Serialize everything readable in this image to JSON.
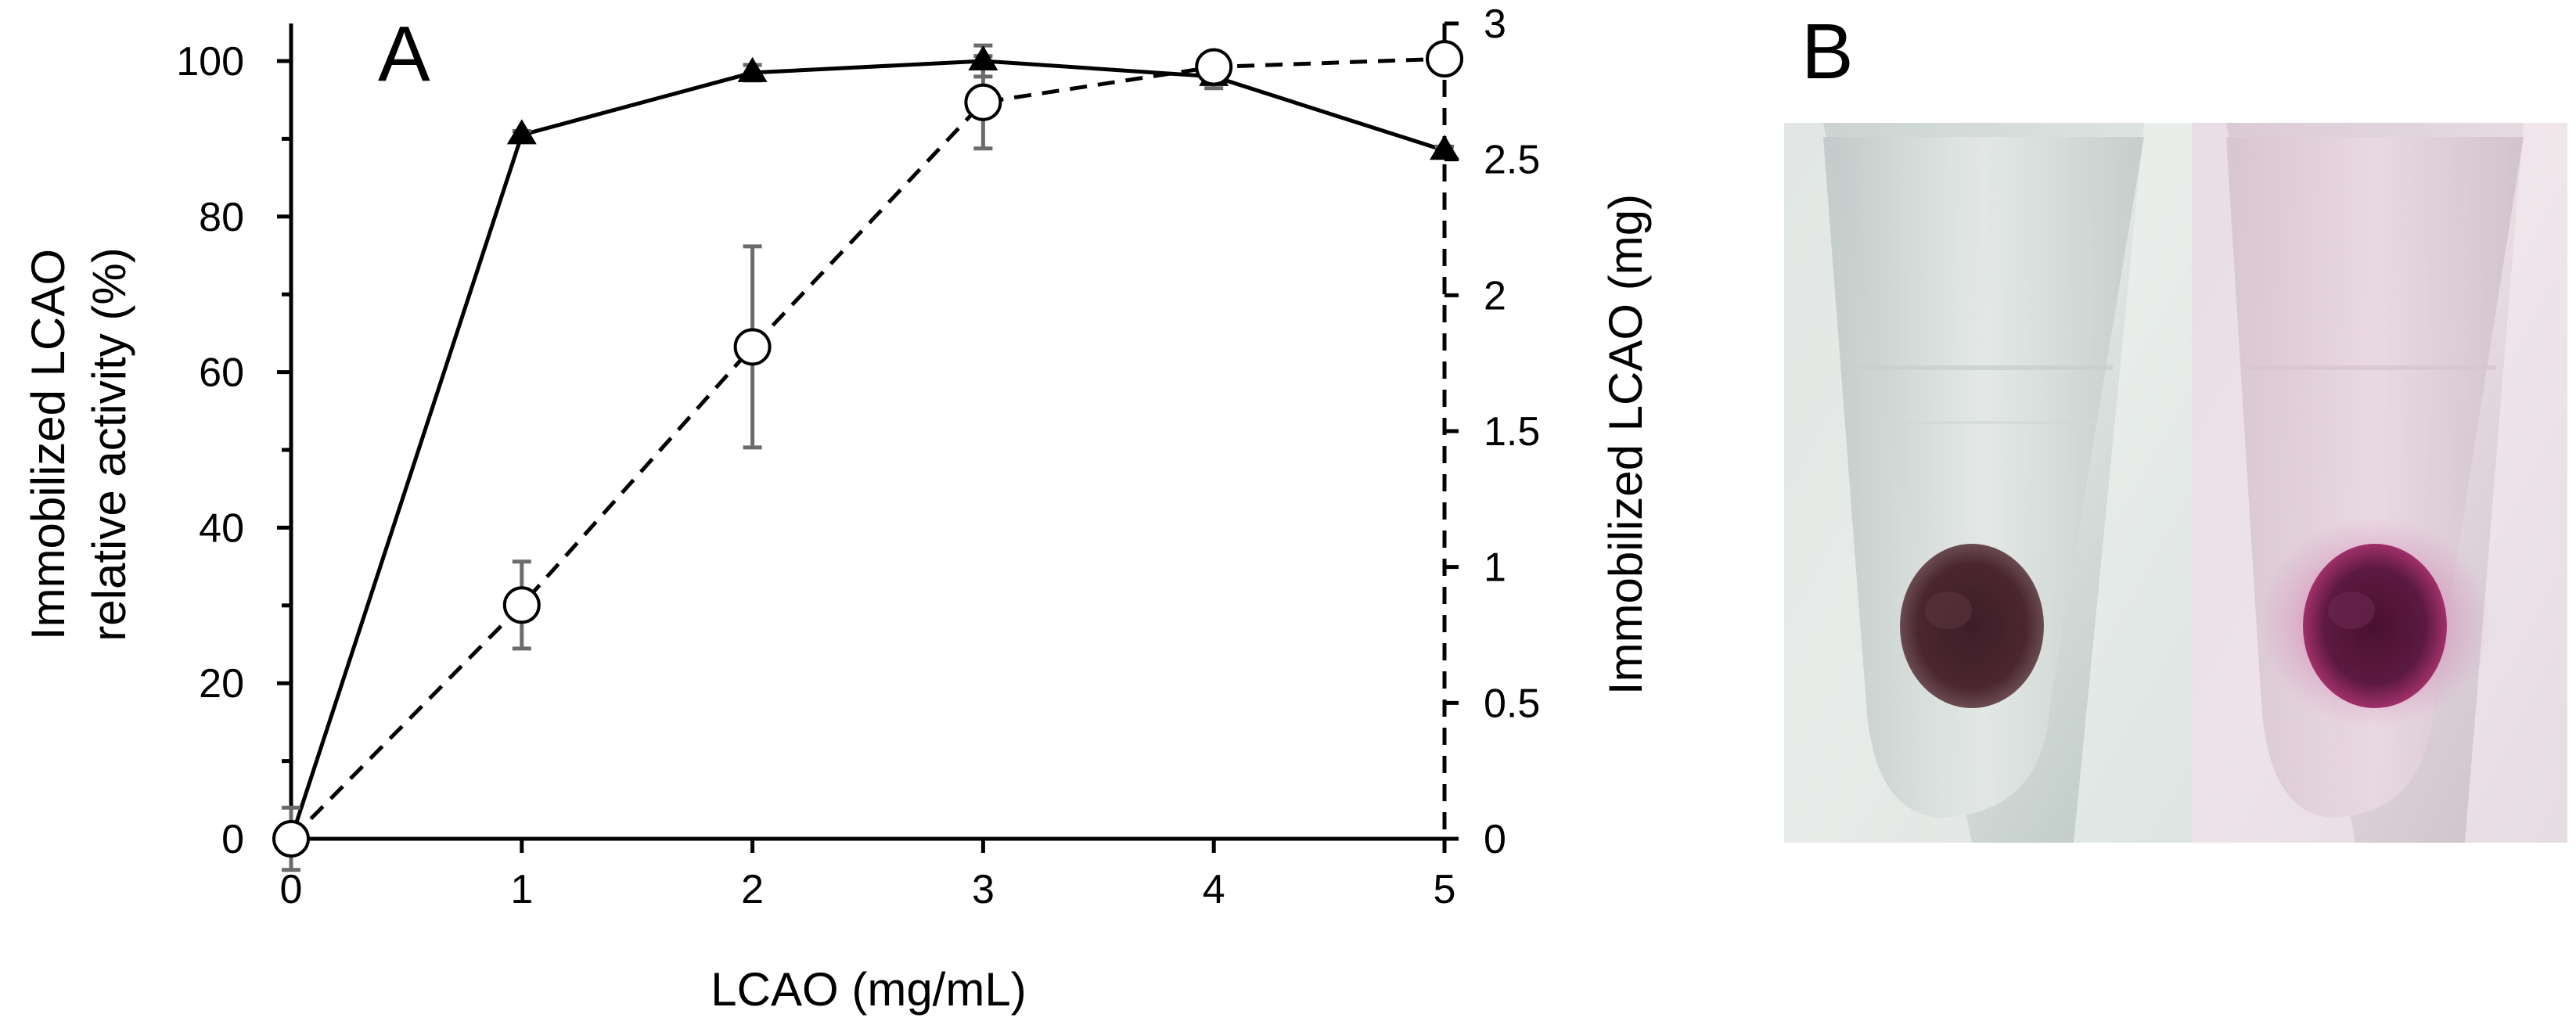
{
  "panel_labels": {
    "a": "A",
    "b": "B"
  },
  "chart_data": {
    "type": "line",
    "xlabel": "LCAO (mg/mL)",
    "ylabel_lines": [
      "Immobilized LCAO",
      "relative activity (%)"
    ],
    "y2label": "Immobilized LCAO (mg)",
    "xlim": [
      0,
      5
    ],
    "ylim": [
      0,
      100
    ],
    "y2lim": [
      0,
      3
    ],
    "x_ticks": [
      "0",
      "1",
      "2",
      "3",
      "4",
      "5"
    ],
    "y_ticks": [
      "0",
      "20",
      "40",
      "60",
      "80",
      "100"
    ],
    "y2_ticks": [
      "0",
      "0.5",
      "1",
      "1.5",
      "2",
      "2.5",
      "3"
    ],
    "grid": false,
    "series": [
      {
        "axis": "left",
        "line": "solid",
        "marker": "filled-triangle",
        "x": [
          0,
          1,
          2,
          3,
          4,
          5
        ],
        "y": [
          0,
          90.5,
          98.5,
          100,
          98,
          88.5
        ],
        "err": [
          4,
          0.5,
          1,
          2,
          1.5,
          0.5
        ]
      },
      {
        "axis": "right",
        "line": "dashed",
        "marker": "open-circle",
        "x": [
          0,
          1,
          2,
          3,
          4,
          5
        ],
        "y": [
          0,
          0.86,
          1.81,
          2.71,
          2.84,
          2.87
        ],
        "err": [
          0,
          0.16,
          0.37,
          0.17,
          0.03,
          0.01
        ]
      }
    ]
  },
  "photos": [
    {
      "name": "tube-photo-left",
      "tint": "#cdd5d3",
      "pellet": "#4a2630"
    },
    {
      "name": "tube-photo-right",
      "tint": "#ddd0d8",
      "pellet": "#5c1a40"
    }
  ],
  "colors": {
    "axis": "#000000",
    "errorbar": "#6b6b6b",
    "marker_fill": "#ffffff"
  }
}
